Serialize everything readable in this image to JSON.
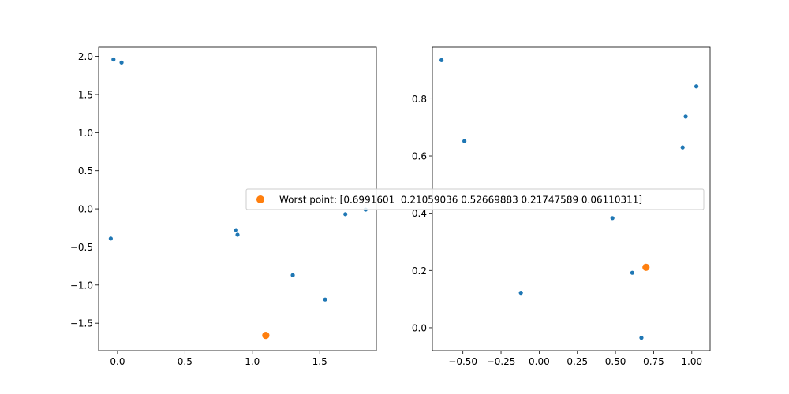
{
  "chart_data": [
    {
      "type": "scatter",
      "xlim": [
        -0.14,
        1.92
      ],
      "ylim": [
        -1.86,
        2.12
      ],
      "xticks": [
        0.0,
        0.5,
        1.0,
        1.5
      ],
      "xtick_labels": [
        "0.0",
        "0.5",
        "1.0",
        "1.5"
      ],
      "yticks": [
        -1.5,
        -1.0,
        -0.5,
        0.0,
        0.5,
        1.0,
        1.5,
        2.0
      ],
      "ytick_labels": [
        "−1.5",
        "−1.0",
        "−0.5",
        "0.0",
        "0.5",
        "1.0",
        "1.5",
        "2.0"
      ],
      "grid": false,
      "series": [
        {
          "color": "#1f77b4",
          "points": [
            [
              -0.03,
              1.96
            ],
            [
              0.03,
              1.92
            ],
            [
              -0.05,
              -0.39
            ],
            [
              0.88,
              -0.28
            ],
            [
              0.89,
              -0.34
            ],
            [
              1.3,
              -0.87
            ],
            [
              1.54,
              -1.19
            ],
            [
              1.69,
              -0.07
            ],
            [
              1.84,
              -0.01
            ]
          ]
        },
        {
          "color": "#ff7f0e",
          "points": [
            [
              1.1,
              -1.66
            ]
          ]
        }
      ]
    },
    {
      "type": "scatter",
      "xlim": [
        -0.7,
        1.12
      ],
      "ylim": [
        -0.08,
        0.98
      ],
      "xticks": [
        -0.5,
        -0.25,
        0.0,
        0.25,
        0.5,
        0.75,
        1.0
      ],
      "xtick_labels": [
        "−0.50",
        "−0.25",
        "0.00",
        "0.25",
        "0.50",
        "0.75",
        "1.00"
      ],
      "yticks": [
        0.0,
        0.2,
        0.4,
        0.6,
        0.8
      ],
      "ytick_labels": [
        "0.0",
        "0.2",
        "0.4",
        "0.6",
        "0.8"
      ],
      "grid": false,
      "series": [
        {
          "color": "#1f77b4",
          "points": [
            [
              -0.64,
              0.935
            ],
            [
              -0.49,
              0.652
            ],
            [
              -0.12,
              0.122
            ],
            [
              0.48,
              0.383
            ],
            [
              0.61,
              0.192
            ],
            [
              0.67,
              -0.035
            ],
            [
              0.94,
              0.63
            ],
            [
              0.96,
              0.738
            ],
            [
              1.03,
              0.843
            ]
          ]
        },
        {
          "color": "#ff7f0e",
          "points": [
            [
              0.7,
              0.211
            ]
          ]
        }
      ]
    }
  ],
  "legend": {
    "placement": "center",
    "entries": [
      {
        "label": "Worst point: [0.6991601  0.21059036 0.52669883 0.21747589 0.06110311]",
        "color": "#ff7f0e"
      }
    ]
  }
}
